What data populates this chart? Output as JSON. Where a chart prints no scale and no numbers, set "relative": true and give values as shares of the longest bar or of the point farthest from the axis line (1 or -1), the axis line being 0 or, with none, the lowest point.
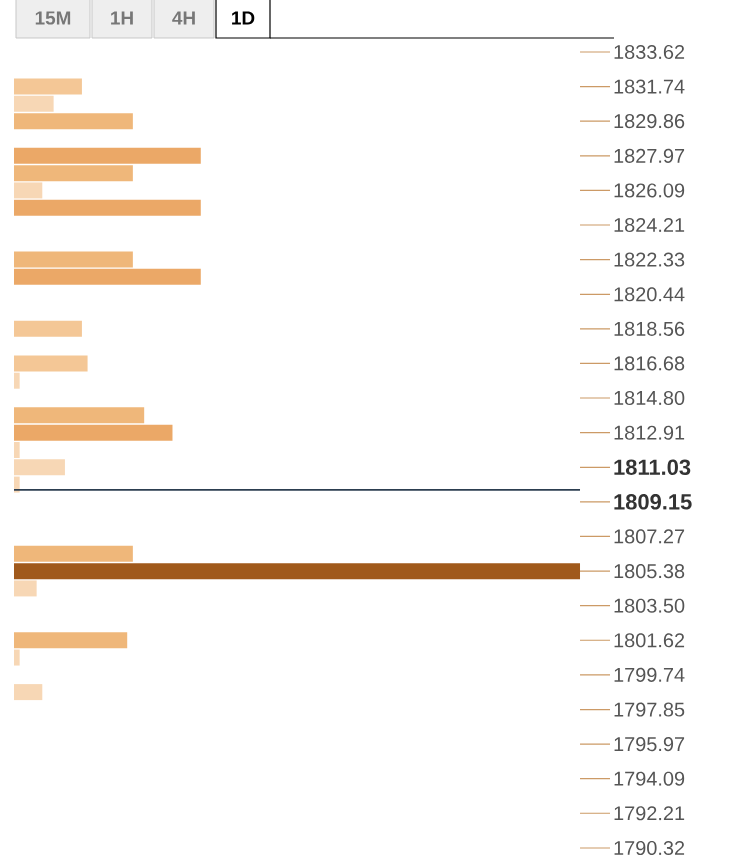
{
  "chart_data": {
    "type": "bar",
    "orientation": "horizontal",
    "relative": true,
    "annotations": [
      "15M",
      "1H",
      "4H",
      "1D"
    ],
    "x": [
      1831.74,
      1830.8,
      1829.86,
      1827.97,
      1827.03,
      1826.09,
      1825.15,
      1822.33,
      1821.39,
      1818.56,
      1816.68,
      1815.74,
      1813.86,
      1812.91,
      1811.97,
      1811.03,
      1810.09,
      1806.33,
      1805.38,
      1804.44,
      1801.62,
      1800.68,
      1798.8
    ],
    "values": [
      0.12,
      0.07,
      0.21,
      0.33,
      0.21,
      0.05,
      0.33,
      0.21,
      0.33,
      0.12,
      0.13,
      0.01,
      0.23,
      0.28,
      0.01,
      0.09,
      0.01,
      0.21,
      1,
      0.04,
      0.2,
      0.01,
      0.05
    ],
    "colors": [
      "#f4c796",
      "#f7d7b5",
      "#efb77a",
      "#eba867",
      "#efb77a",
      "#f7d7b5",
      "#eba867",
      "#efb77a",
      "#eba867",
      "#f4c796",
      "#f4c796",
      "#f7d7b5",
      "#efb77a",
      "#eba867",
      "#f7d7b5",
      "#f7d7b5",
      "#f7d7b5",
      "#efb77a",
      "#a0591b",
      "#f7d7b5",
      "#efb77a",
      "#f7d7b5",
      "#f7d7b5"
    ],
    "ylim": [
      1790.32,
      1833.62
    ],
    "yticks": [
      1833.62,
      1831.74,
      1829.86,
      1827.97,
      1826.09,
      1824.21,
      1822.33,
      1820.44,
      1818.56,
      1816.68,
      {
        "value": 1814.8,
        "label": "1814.80"
      },
      1812.91,
      1811.03,
      1809.15,
      1807.27,
      1805.38,
      {
        "value": 1803.5,
        "label": "1803.50"
      },
      1801.62,
      1799.74,
      1797.85,
      1795.97,
      1794.09,
      1792.21,
      1790.32
    ],
    "ref_lines": [
      {
        "axis": "y",
        "value": 1809.8,
        "color": "#2c3e50"
      }
    ]
  }
}
